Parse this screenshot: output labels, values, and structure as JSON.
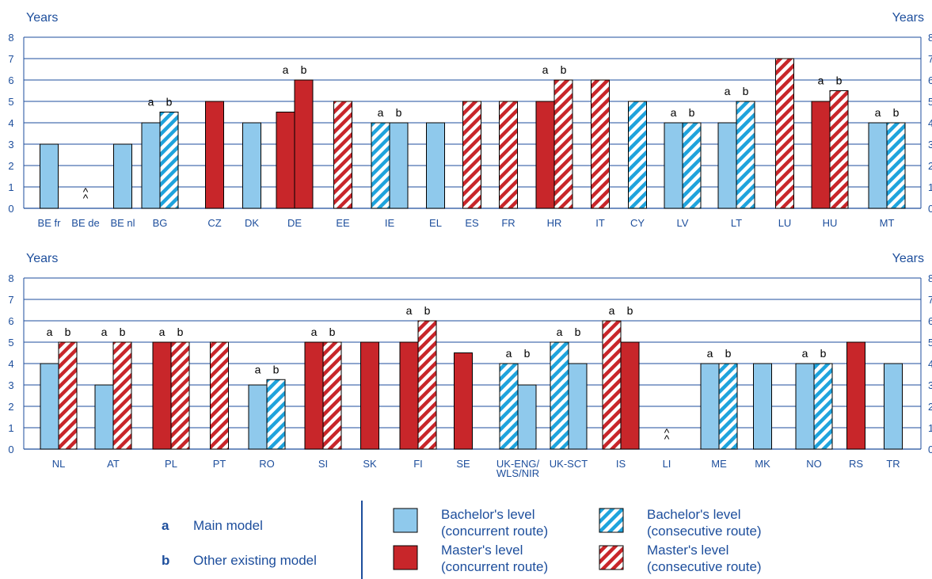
{
  "colors": {
    "text": "#1d4e9c",
    "bachelor": "#8fc9ec",
    "master": "#c8262a",
    "stripe_bachelor": "#1fa3dc",
    "stripe_master": "#c8262a",
    "gridline": "#1d4e9c"
  },
  "chart_data": [
    {
      "type": "bar",
      "ylabel_left": "Years",
      "ylabel_right": "Years",
      "ylim": [
        0,
        8
      ],
      "yticks": [
        0,
        1,
        2,
        3,
        4,
        5,
        6,
        7,
        8
      ],
      "grid": true,
      "categories": [
        {
          "label": [
            "BE fr"
          ],
          "marks": [
            "",
            ""
          ],
          "not_applicable": false,
          "bars": [
            {
              "value": 3,
              "kind": "bachelor_concurrent"
            }
          ]
        },
        {
          "label": [
            "BE de"
          ],
          "marks": [
            "",
            ""
          ],
          "not_applicable": true,
          "bars": []
        },
        {
          "label": [
            "BE nl"
          ],
          "marks": [
            "",
            ""
          ],
          "not_applicable": false,
          "bars": [
            {
              "value": 3,
              "kind": "bachelor_concurrent"
            }
          ]
        },
        {
          "label": [
            "BG"
          ],
          "marks": [
            "a",
            "b"
          ],
          "not_applicable": false,
          "bars": [
            {
              "value": 4,
              "kind": "bachelor_concurrent"
            },
            {
              "value": 4.5,
              "kind": "bachelor_consecutive"
            }
          ]
        },
        {
          "label": [
            "CZ"
          ],
          "marks": [
            "",
            ""
          ],
          "not_applicable": false,
          "bars": [
            {
              "value": 5,
              "kind": "master_concurrent"
            }
          ]
        },
        {
          "label": [
            "DK"
          ],
          "marks": [
            "",
            ""
          ],
          "not_applicable": false,
          "bars": [
            {
              "value": 4,
              "kind": "bachelor_concurrent"
            }
          ]
        },
        {
          "label": [
            "DE"
          ],
          "marks": [
            "a",
            "b"
          ],
          "not_applicable": false,
          "bars": [
            {
              "value": 4.5,
              "kind": "master_concurrent"
            },
            {
              "value": 6,
              "kind": "master_concurrent"
            }
          ]
        },
        {
          "label": [
            "EE"
          ],
          "marks": [
            "",
            ""
          ],
          "not_applicable": false,
          "bars": [
            {
              "value": 5,
              "kind": "master_consecutive"
            }
          ]
        },
        {
          "label": [
            "IE"
          ],
          "marks": [
            "a",
            "b"
          ],
          "not_applicable": false,
          "bars": [
            {
              "value": 4,
              "kind": "bachelor_consecutive"
            },
            {
              "value": 4,
              "kind": "bachelor_concurrent"
            }
          ]
        },
        {
          "label": [
            "EL"
          ],
          "marks": [
            "",
            ""
          ],
          "not_applicable": false,
          "bars": [
            {
              "value": 4,
              "kind": "bachelor_concurrent"
            }
          ]
        },
        {
          "label": [
            "ES"
          ],
          "marks": [
            "",
            ""
          ],
          "not_applicable": false,
          "bars": [
            {
              "value": 5,
              "kind": "master_consecutive"
            }
          ]
        },
        {
          "label": [
            "FR"
          ],
          "marks": [
            "",
            ""
          ],
          "not_applicable": false,
          "bars": [
            {
              "value": 5,
              "kind": "master_consecutive"
            }
          ]
        },
        {
          "label": [
            "HR"
          ],
          "marks": [
            "a",
            "b"
          ],
          "not_applicable": false,
          "bars": [
            {
              "value": 5,
              "kind": "master_concurrent"
            },
            {
              "value": 6,
              "kind": "master_consecutive"
            }
          ]
        },
        {
          "label": [
            "IT"
          ],
          "marks": [
            "",
            ""
          ],
          "not_applicable": false,
          "bars": [
            {
              "value": 6,
              "kind": "master_consecutive"
            }
          ]
        },
        {
          "label": [
            "CY"
          ],
          "marks": [
            "",
            ""
          ],
          "not_applicable": false,
          "bars": [
            {
              "value": 5,
              "kind": "bachelor_consecutive"
            }
          ]
        },
        {
          "label": [
            "LV"
          ],
          "marks": [
            "a",
            "b"
          ],
          "not_applicable": false,
          "bars": [
            {
              "value": 4,
              "kind": "bachelor_concurrent"
            },
            {
              "value": 4,
              "kind": "bachelor_consecutive"
            }
          ]
        },
        {
          "label": [
            "LT"
          ],
          "marks": [
            "a",
            "b"
          ],
          "not_applicable": false,
          "bars": [
            {
              "value": 4,
              "kind": "bachelor_concurrent"
            },
            {
              "value": 5,
              "kind": "bachelor_consecutive"
            }
          ]
        },
        {
          "label": [
            "LU"
          ],
          "marks": [
            "",
            ""
          ],
          "not_applicable": false,
          "bars": [
            {
              "value": 7,
              "kind": "master_consecutive"
            }
          ]
        },
        {
          "label": [
            "HU"
          ],
          "marks": [
            "a",
            "b"
          ],
          "not_applicable": false,
          "bars": [
            {
              "value": 5,
              "kind": "master_concurrent"
            },
            {
              "value": 5.5,
              "kind": "master_consecutive"
            }
          ]
        },
        {
          "label": [
            "MT"
          ],
          "marks": [
            "a",
            "b"
          ],
          "not_applicable": false,
          "bars": [
            {
              "value": 4,
              "kind": "bachelor_concurrent"
            },
            {
              "value": 4,
              "kind": "bachelor_consecutive"
            }
          ]
        }
      ]
    },
    {
      "type": "bar",
      "ylabel_left": "Years",
      "ylabel_right": "Years",
      "ylim": [
        0,
        8
      ],
      "yticks": [
        0,
        1,
        2,
        3,
        4,
        5,
        6,
        7,
        8
      ],
      "grid": true,
      "categories": [
        {
          "label": [
            "NL"
          ],
          "marks": [
            "a",
            "b"
          ],
          "not_applicable": false,
          "bars": [
            {
              "value": 4,
              "kind": "bachelor_concurrent"
            },
            {
              "value": 5,
              "kind": "master_consecutive"
            }
          ]
        },
        {
          "label": [
            "AT"
          ],
          "marks": [
            "a",
            "b"
          ],
          "not_applicable": false,
          "bars": [
            {
              "value": 3,
              "kind": "bachelor_concurrent"
            },
            {
              "value": 5,
              "kind": "master_consecutive"
            }
          ]
        },
        {
          "label": [
            "PL"
          ],
          "marks": [
            "a",
            "b"
          ],
          "not_applicable": false,
          "bars": [
            {
              "value": 5,
              "kind": "master_concurrent"
            },
            {
              "value": 5,
              "kind": "master_consecutive"
            }
          ]
        },
        {
          "label": [
            "PT"
          ],
          "marks": [
            "",
            ""
          ],
          "not_applicable": false,
          "bars": [
            {
              "value": 5,
              "kind": "master_consecutive"
            }
          ]
        },
        {
          "label": [
            "RO"
          ],
          "marks": [
            "a",
            "b"
          ],
          "not_applicable": false,
          "bars": [
            {
              "value": 3,
              "kind": "bachelor_concurrent"
            },
            {
              "value": 3.25,
              "kind": "bachelor_consecutive"
            }
          ]
        },
        {
          "label": [
            "SI"
          ],
          "marks": [
            "a",
            "b"
          ],
          "not_applicable": false,
          "bars": [
            {
              "value": 5,
              "kind": "master_concurrent"
            },
            {
              "value": 5,
              "kind": "master_consecutive"
            }
          ]
        },
        {
          "label": [
            "SK"
          ],
          "marks": [
            "",
            ""
          ],
          "not_applicable": false,
          "bars": [
            {
              "value": 5,
              "kind": "master_concurrent"
            }
          ]
        },
        {
          "label": [
            "FI"
          ],
          "marks": [
            "a",
            "b"
          ],
          "not_applicable": false,
          "bars": [
            {
              "value": 5,
              "kind": "master_concurrent"
            },
            {
              "value": 6,
              "kind": "master_consecutive"
            }
          ]
        },
        {
          "label": [
            "SE"
          ],
          "marks": [
            "",
            ""
          ],
          "not_applicable": false,
          "bars": [
            {
              "value": 4.5,
              "kind": "master_concurrent"
            }
          ]
        },
        {
          "label": [
            "UK-ENG/",
            "WLS/NIR"
          ],
          "marks": [
            "a",
            "b"
          ],
          "not_applicable": false,
          "bars": [
            {
              "value": 4,
              "kind": "bachelor_consecutive"
            },
            {
              "value": 3,
              "kind": "bachelor_concurrent"
            }
          ]
        },
        {
          "label": [
            "UK-SCT"
          ],
          "marks": [
            "a",
            "b"
          ],
          "not_applicable": false,
          "bars": [
            {
              "value": 5,
              "kind": "bachelor_consecutive"
            },
            {
              "value": 4,
              "kind": "bachelor_concurrent"
            }
          ]
        },
        {
          "label": [
            "IS"
          ],
          "marks": [
            "a",
            "b"
          ],
          "not_applicable": false,
          "bars": [
            {
              "value": 6,
              "kind": "master_consecutive"
            },
            {
              "value": 5,
              "kind": "master_concurrent"
            }
          ]
        },
        {
          "label": [
            "LI"
          ],
          "marks": [
            "",
            ""
          ],
          "not_applicable": true,
          "bars": []
        },
        {
          "label": [
            "ME"
          ],
          "marks": [
            "a",
            "b"
          ],
          "not_applicable": false,
          "bars": [
            {
              "value": 4,
              "kind": "bachelor_concurrent"
            },
            {
              "value": 4,
              "kind": "bachelor_consecutive"
            }
          ]
        },
        {
          "label": [
            "MK"
          ],
          "marks": [
            "",
            ""
          ],
          "not_applicable": false,
          "bars": [
            {
              "value": 4,
              "kind": "bachelor_concurrent"
            }
          ]
        },
        {
          "label": [
            "NO"
          ],
          "marks": [
            "a",
            "b"
          ],
          "not_applicable": false,
          "bars": [
            {
              "value": 4,
              "kind": "bachelor_concurrent"
            },
            {
              "value": 4,
              "kind": "bachelor_consecutive"
            }
          ]
        },
        {
          "label": [
            "RS"
          ],
          "marks": [
            "",
            ""
          ],
          "not_applicable": false,
          "bars": [
            {
              "value": 5,
              "kind": "master_concurrent"
            }
          ]
        },
        {
          "label": [
            "TR"
          ],
          "marks": [
            "",
            ""
          ],
          "not_applicable": false,
          "bars": [
            {
              "value": 4,
              "kind": "bachelor_concurrent"
            }
          ]
        }
      ]
    }
  ],
  "not_applicable_symbol": "^^",
  "legend": {
    "models": [
      {
        "key": "a",
        "label": "Main model"
      },
      {
        "key": "b",
        "label": "Other existing model"
      }
    ],
    "series": [
      {
        "kind": "bachelor_concurrent",
        "lines": [
          "Bachelor's level",
          "(concurrent route)"
        ]
      },
      {
        "kind": "bachelor_consecutive",
        "lines": [
          "Bachelor's level",
          "(consecutive route)"
        ]
      },
      {
        "kind": "master_concurrent",
        "lines": [
          "Master's level",
          "(concurrent route)"
        ]
      },
      {
        "kind": "master_consecutive",
        "lines": [
          "Master's level",
          "(consecutive route)"
        ]
      }
    ]
  }
}
